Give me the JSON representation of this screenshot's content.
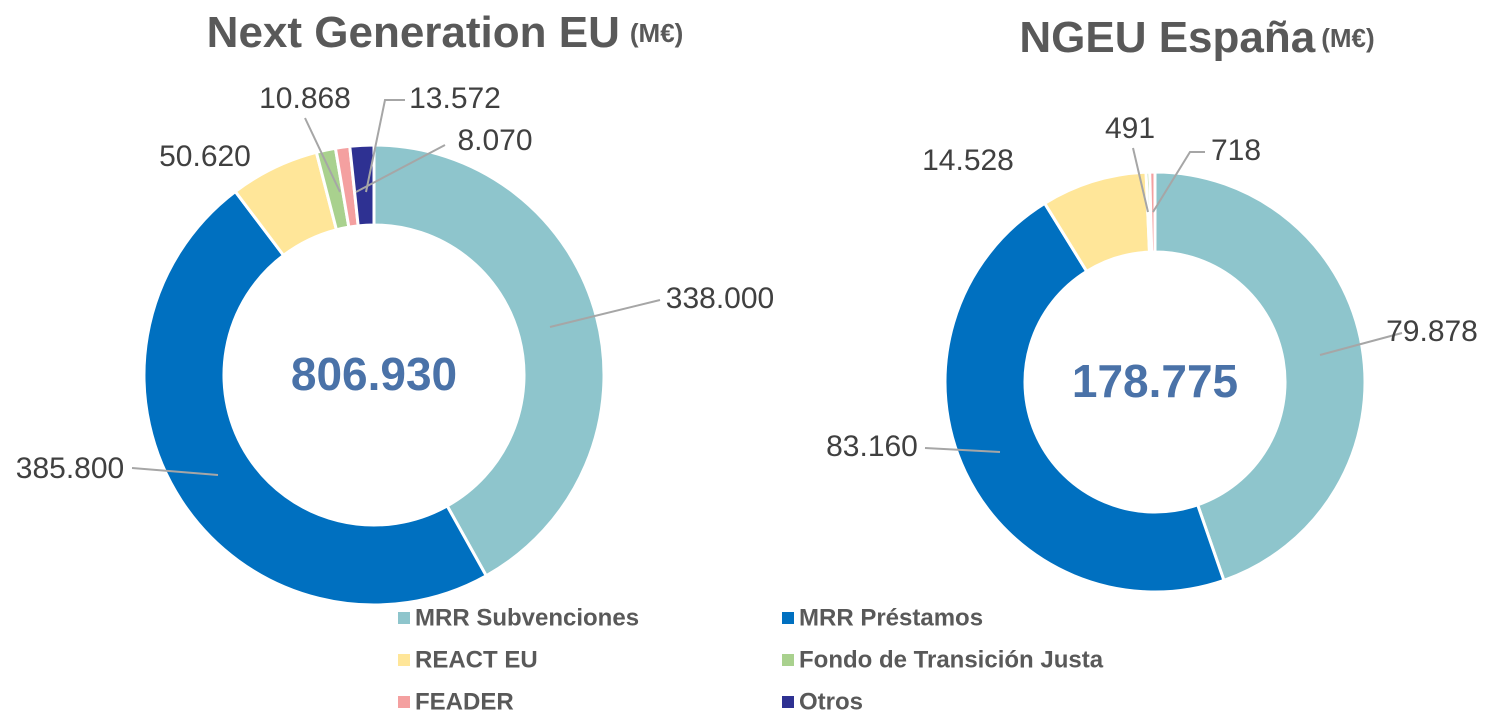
{
  "chart_data": [
    {
      "type": "pie",
      "title": "Next Generation EU",
      "unit": "(M€)",
      "center_text": "806.930",
      "categories": [
        "MRR Subvenciones",
        "MRR Préstamos",
        "REACT EU",
        "Fondo de Transición Justa",
        "FEADER",
        "Otros"
      ],
      "values": [
        338000,
        385800,
        50620,
        10868,
        8070,
        13572
      ],
      "value_labels": [
        "338.000",
        "385.800",
        "50.620",
        "10.868",
        "8.070",
        "13.572"
      ],
      "colors": [
        "#8ec5cc",
        "#0070c0",
        "#ffe699",
        "#a9d18e",
        "#f4a0a0",
        "#2e3192"
      ]
    },
    {
      "type": "pie",
      "title": "NGEU España",
      "unit": "(M€)",
      "center_text": "178.775",
      "categories": [
        "MRR Subvenciones",
        "MRR Préstamos",
        "REACT EU",
        "Fondo de Transición Justa",
        "FEADER"
      ],
      "values": [
        79878,
        83160,
        14528,
        491,
        718
      ],
      "value_labels": [
        "79.878",
        "83.160",
        "14.528",
        "491",
        "718"
      ],
      "colors": [
        "#8ec5cc",
        "#0070c0",
        "#ffe699",
        "#a9d18e",
        "#f4a0a0"
      ]
    }
  ]
}
